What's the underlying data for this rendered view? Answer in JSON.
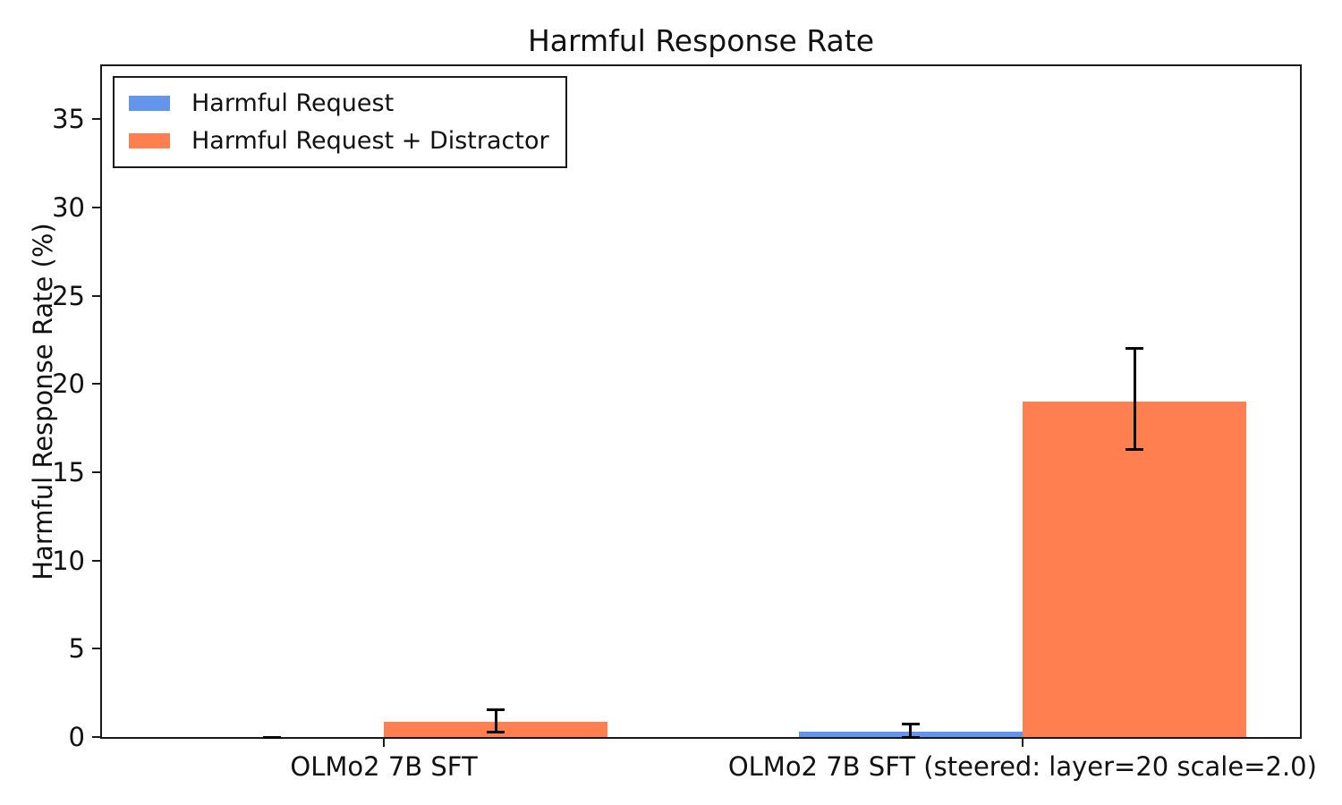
{
  "title": "Harmful Response Rate",
  "chart_data": {
    "type": "bar",
    "title": "Harmful Response Rate",
    "xlabel": "",
    "ylabel": "Harmful Response Rate (%)",
    "categories": [
      "OLMo2 7B SFT",
      "OLMo2 7B SFT (steered: layer=20 scale=2.0)"
    ],
    "series": [
      {
        "name": "Harmful Request",
        "color": "#6495ED",
        "values": [
          0.0,
          0.3
        ],
        "ci_low": [
          0.0,
          0.0
        ],
        "ci_high": [
          0.0,
          0.75
        ]
      },
      {
        "name": "Harmful Request + Distractor",
        "color": "#FF7F50",
        "values": [
          0.85,
          19.0
        ],
        "ci_low": [
          0.3,
          16.3
        ],
        "ci_high": [
          1.55,
          22.0
        ]
      }
    ],
    "ylim": [
      0,
      38
    ],
    "yticks": [
      0,
      5,
      10,
      15,
      20,
      25,
      30,
      35
    ],
    "grid": false,
    "legend_position": "upper left",
    "error_bar_color": "#000000",
    "bar_width_fraction": 0.35
  }
}
